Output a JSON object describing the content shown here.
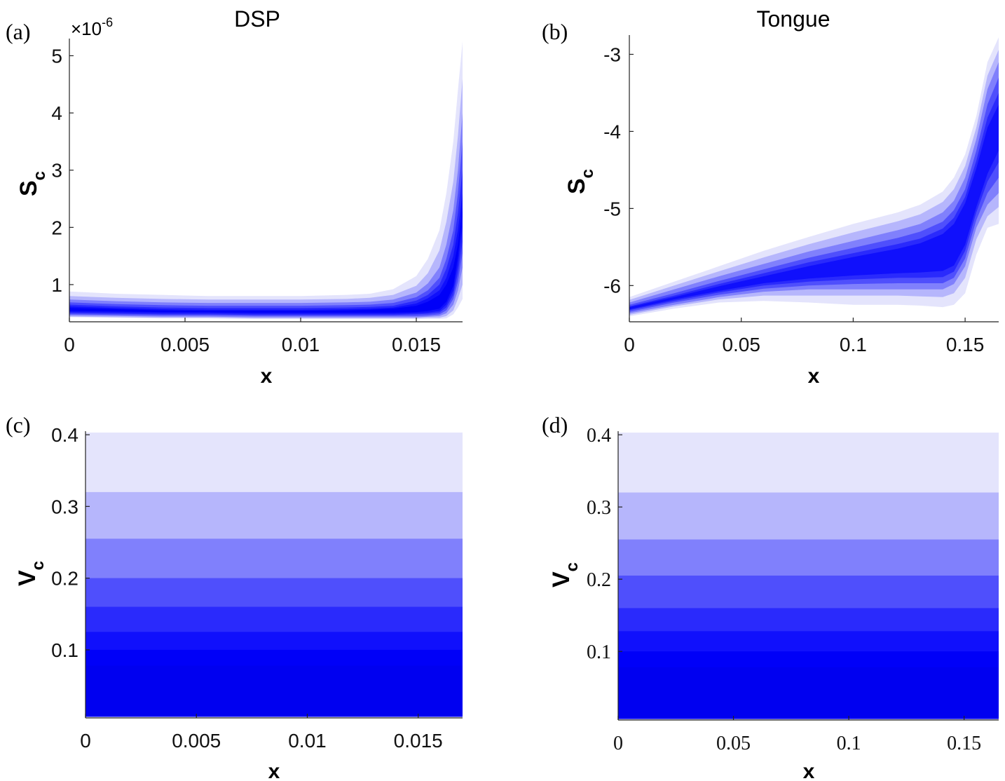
{
  "colors": {
    "band_colors": [
      "#e4e4fc",
      "#b6b6fc",
      "#8080fc",
      "#4f4ffc",
      "#2a2afc",
      "#1010fc",
      "#0000f8",
      "#0000f0"
    ],
    "axis": "#222222",
    "text": "#111111"
  },
  "chart_data": [
    {
      "type": "area",
      "panel_label": "(a)",
      "title": "DSP",
      "xlabel": "x",
      "ylabel": "S",
      "ylabel_sub": "c",
      "y_exponent_label": "×10",
      "y_exponent_power": "-6",
      "xlim": [
        0,
        0.017
      ],
      "ylim": [
        0.35,
        5.3
      ],
      "x_ticks": [
        0,
        0.005,
        0.01,
        0.015
      ],
      "x_tick_labels": [
        "0",
        "0.005",
        "0.01",
        "0.015"
      ],
      "y_ticks": [
        1,
        2,
        3,
        4,
        5
      ],
      "y_tick_labels": [
        "1",
        "2",
        "3",
        "4",
        "5"
      ],
      "grid": false,
      "x": [
        0,
        0.002,
        0.004,
        0.006,
        0.008,
        0.01,
        0.012,
        0.013,
        0.014,
        0.015,
        0.0155,
        0.016,
        0.0163,
        0.0166,
        0.0168,
        0.017
      ],
      "bands": [
        {
          "lower": [
            0.43,
            0.42,
            0.41,
            0.41,
            0.4,
            0.4,
            0.4,
            0.4,
            0.4,
            0.4,
            0.4,
            0.4,
            0.41,
            0.48,
            0.6,
            0.75
          ],
          "upper": [
            0.88,
            0.84,
            0.82,
            0.8,
            0.8,
            0.8,
            0.82,
            0.84,
            0.92,
            1.15,
            1.45,
            1.95,
            2.6,
            3.5,
            4.4,
            5.25
          ]
        },
        {
          "lower": [
            0.44,
            0.43,
            0.42,
            0.42,
            0.41,
            0.41,
            0.41,
            0.41,
            0.41,
            0.41,
            0.42,
            0.42,
            0.45,
            0.55,
            0.75,
            1.0
          ],
          "upper": [
            0.8,
            0.77,
            0.75,
            0.74,
            0.74,
            0.74,
            0.75,
            0.77,
            0.82,
            0.98,
            1.2,
            1.6,
            2.1,
            2.8,
            3.6,
            4.6
          ]
        },
        {
          "lower": [
            0.46,
            0.45,
            0.44,
            0.44,
            0.43,
            0.43,
            0.43,
            0.43,
            0.43,
            0.43,
            0.44,
            0.45,
            0.5,
            0.65,
            0.9,
            1.3
          ],
          "upper": [
            0.74,
            0.71,
            0.69,
            0.68,
            0.68,
            0.68,
            0.69,
            0.7,
            0.74,
            0.86,
            1.02,
            1.3,
            1.7,
            2.3,
            3.0,
            4.0
          ]
        },
        {
          "lower": [
            0.48,
            0.47,
            0.46,
            0.46,
            0.45,
            0.45,
            0.45,
            0.45,
            0.45,
            0.45,
            0.46,
            0.48,
            0.55,
            0.75,
            1.05,
            1.55
          ],
          "upper": [
            0.69,
            0.66,
            0.64,
            0.63,
            0.63,
            0.63,
            0.64,
            0.65,
            0.68,
            0.78,
            0.9,
            1.12,
            1.45,
            1.95,
            2.6,
            3.5
          ]
        },
        {
          "lower": [
            0.5,
            0.49,
            0.48,
            0.48,
            0.47,
            0.47,
            0.47,
            0.47,
            0.47,
            0.48,
            0.49,
            0.51,
            0.6,
            0.82,
            1.2,
            1.75
          ],
          "upper": [
            0.65,
            0.62,
            0.6,
            0.59,
            0.59,
            0.59,
            0.6,
            0.61,
            0.63,
            0.72,
            0.82,
            1.0,
            1.28,
            1.7,
            2.25,
            3.0
          ]
        },
        {
          "lower": [
            0.52,
            0.51,
            0.5,
            0.5,
            0.49,
            0.49,
            0.49,
            0.49,
            0.49,
            0.5,
            0.51,
            0.54,
            0.65,
            0.9,
            1.35,
            2.0
          ],
          "upper": [
            0.62,
            0.59,
            0.57,
            0.56,
            0.56,
            0.56,
            0.57,
            0.58,
            0.6,
            0.67,
            0.76,
            0.9,
            1.12,
            1.5,
            1.95,
            2.6
          ]
        },
        {
          "lower": [
            0.54,
            0.53,
            0.52,
            0.52,
            0.51,
            0.51,
            0.51,
            0.51,
            0.51,
            0.52,
            0.54,
            0.58,
            0.7,
            0.98,
            1.5,
            2.2
          ],
          "upper": [
            0.59,
            0.57,
            0.55,
            0.54,
            0.54,
            0.54,
            0.55,
            0.56,
            0.58,
            0.63,
            0.7,
            0.82,
            1.0,
            1.3,
            1.7,
            2.35
          ]
        }
      ]
    },
    {
      "type": "area",
      "panel_label": "(b)",
      "title": "Tongue",
      "xlabel": "x",
      "ylabel": "S",
      "ylabel_sub": "c",
      "xlim": [
        0,
        0.165
      ],
      "ylim": [
        -6.47,
        -2.75
      ],
      "x_ticks": [
        0,
        0.05,
        0.1,
        0.15
      ],
      "x_tick_labels": [
        "0",
        "0.05",
        "0.1",
        "0.15"
      ],
      "y_ticks": [
        -6,
        -5,
        -4,
        -3
      ],
      "y_tick_labels": [
        "-6",
        "-5",
        "-4",
        "-3"
      ],
      "grid": false,
      "x": [
        0,
        0.02,
        0.04,
        0.06,
        0.08,
        0.1,
        0.12,
        0.13,
        0.14,
        0.145,
        0.15,
        0.155,
        0.16,
        0.165
      ],
      "bands": [
        {
          "lower": [
            -6.4,
            -6.3,
            -6.22,
            -6.2,
            -6.22,
            -6.25,
            -6.25,
            -6.26,
            -6.28,
            -6.25,
            -6.1,
            -5.6,
            -5.25,
            -5.2
          ],
          "upper": [
            -6.15,
            -5.95,
            -5.75,
            -5.55,
            -5.37,
            -5.2,
            -5.05,
            -4.95,
            -4.78,
            -4.6,
            -4.3,
            -3.8,
            -3.1,
            -2.78
          ]
        },
        {
          "lower": [
            -6.38,
            -6.27,
            -6.18,
            -6.13,
            -6.13,
            -6.13,
            -6.13,
            -6.14,
            -6.15,
            -6.1,
            -5.9,
            -5.4,
            -5.1,
            -4.98
          ]
        },
        {
          "lower": [
            -6.36,
            -6.25,
            -6.15,
            -6.08,
            -6.05,
            -6.05,
            -6.05,
            -6.05,
            -6.05,
            -5.98,
            -5.75,
            -5.25,
            -4.95,
            -4.8
          ],
          "upper": [
            -6.22,
            -6.05,
            -5.88,
            -5.72,
            -5.56,
            -5.42,
            -5.28,
            -5.2,
            -5.05,
            -4.9,
            -4.6,
            -4.1,
            -3.45,
            -3.1
          ]
        },
        {
          "lower": [
            -6.34,
            -6.22,
            -6.12,
            -6.04,
            -6.0,
            -5.98,
            -5.97,
            -5.97,
            -5.97,
            -5.9,
            -5.65,
            -5.15,
            -4.8,
            -4.6
          ],
          "upper": [
            -6.25,
            -6.1,
            -5.94,
            -5.79,
            -5.64,
            -5.51,
            -5.38,
            -5.3,
            -5.17,
            -5.02,
            -4.75,
            -4.25,
            -3.65,
            -3.3
          ]
        },
        {
          "lower": [
            -6.32,
            -6.2,
            -6.09,
            -6.0,
            -5.95,
            -5.92,
            -5.9,
            -5.9,
            -5.89,
            -5.82,
            -5.55,
            -5.05,
            -4.65,
            -4.4
          ],
          "upper": [
            -6.27,
            -6.13,
            -5.98,
            -5.84,
            -5.7,
            -5.58,
            -5.46,
            -5.39,
            -5.26,
            -5.12,
            -4.85,
            -4.38,
            -3.82,
            -3.5
          ]
        },
        {
          "lower": [
            -6.31,
            -6.18,
            -6.07,
            -5.97,
            -5.91,
            -5.87,
            -5.84,
            -5.83,
            -5.81,
            -5.74,
            -5.47,
            -4.98,
            -4.55,
            -4.25
          ],
          "upper": [
            -6.28,
            -6.15,
            -6.01,
            -5.88,
            -5.75,
            -5.63,
            -5.52,
            -5.45,
            -5.33,
            -5.2,
            -4.93,
            -4.48,
            -3.95,
            -3.65
          ]
        }
      ]
    },
    {
      "type": "area",
      "panel_label": "(c)",
      "title": "",
      "xlabel": "x",
      "ylabel": "V",
      "ylabel_sub": "c",
      "xlim": [
        0,
        0.017
      ],
      "ylim": [
        0.005,
        0.405
      ],
      "x_ticks": [
        0,
        0.005,
        0.01,
        0.015
      ],
      "x_tick_labels": [
        "0",
        "0.005",
        "0.01",
        "0.015"
      ],
      "y_ticks": [
        0.1,
        0.2,
        0.3,
        0.4
      ],
      "y_tick_labels": [
        "0.1",
        "0.2",
        "0.3",
        "0.4"
      ],
      "grid": false,
      "level_boundaries": [
        0.403,
        0.32,
        0.255,
        0.2,
        0.16,
        0.125,
        0.1,
        0.078,
        0.06,
        0.045,
        0.032,
        0.02,
        0.012,
        0.007
      ]
    },
    {
      "type": "area",
      "panel_label": "(d)",
      "title": "",
      "xlabel": "x",
      "ylabel": "V",
      "ylabel_sub": "c",
      "xlim": [
        0,
        0.165
      ],
      "ylim": [
        0.005,
        0.405
      ],
      "x_ticks": [
        0,
        0.05,
        0.1,
        0.15
      ],
      "x_tick_labels": [
        "0",
        "0.05",
        "0.1",
        "0.15"
      ],
      "y_ticks": [
        0.1,
        0.2,
        0.3,
        0.4
      ],
      "y_tick_labels": [
        "0.1",
        "0.2",
        "0.3",
        "0.4"
      ],
      "grid": false,
      "level_boundaries": [
        0.403,
        0.32,
        0.255,
        0.205,
        0.16,
        0.128,
        0.1,
        0.078,
        0.06,
        0.045,
        0.032,
        0.02,
        0.012,
        0.007
      ]
    }
  ]
}
